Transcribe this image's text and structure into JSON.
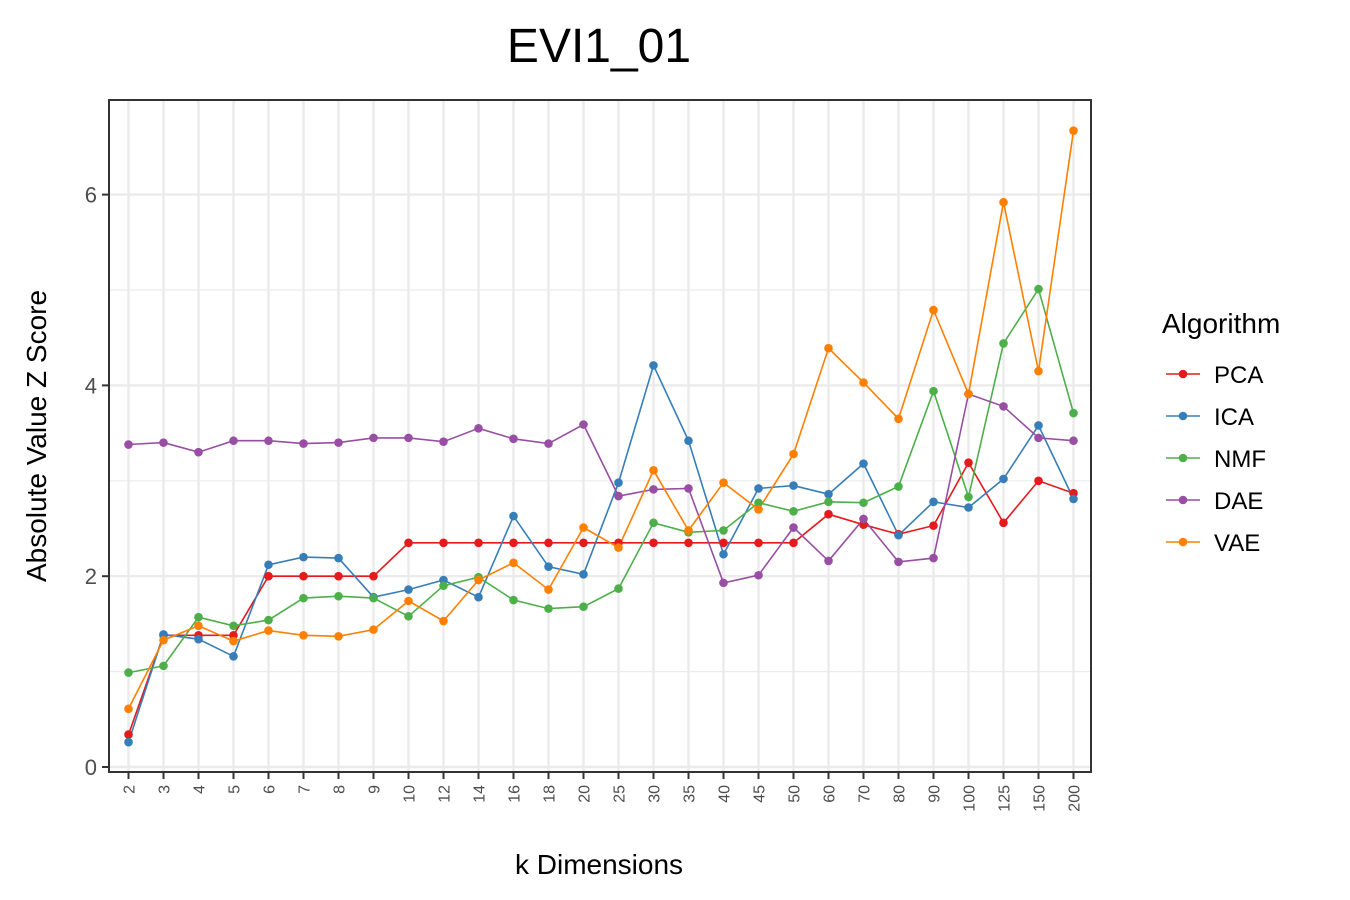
{
  "chart_data": {
    "type": "line",
    "title": "EVI1_01",
    "xlabel": "k Dimensions",
    "ylabel": "Absolute Value Z Score",
    "categories": [
      "2",
      "3",
      "4",
      "5",
      "6",
      "7",
      "8",
      "9",
      "10",
      "12",
      "14",
      "16",
      "18",
      "20",
      "25",
      "30",
      "35",
      "40",
      "45",
      "50",
      "60",
      "70",
      "80",
      "90",
      "100",
      "125",
      "150",
      "200"
    ],
    "ylim": [
      0,
      7
    ],
    "yticks": [
      0,
      2,
      4,
      6
    ],
    "grid": true,
    "legend": {
      "title": "Algorithm",
      "position": "right"
    },
    "series": [
      {
        "name": "PCA",
        "color": "#e41a1c",
        "values": [
          0.34,
          1.38,
          1.38,
          1.38,
          2.0,
          2.0,
          2.0,
          2.0,
          2.35,
          2.35,
          2.35,
          2.35,
          2.35,
          2.35,
          2.35,
          2.35,
          2.35,
          2.35,
          2.35,
          2.35,
          2.65,
          2.54,
          2.44,
          2.53,
          3.19,
          2.56,
          3.0,
          2.87
        ]
      },
      {
        "name": "ICA",
        "color": "#377eb8",
        "values": [
          0.26,
          1.39,
          1.34,
          1.16,
          2.12,
          2.2,
          2.19,
          1.78,
          1.86,
          1.96,
          1.78,
          2.63,
          2.1,
          2.02,
          2.98,
          4.21,
          3.42,
          2.23,
          2.92,
          2.95,
          2.86,
          3.18,
          2.43,
          2.78,
          2.72,
          3.02,
          3.58,
          2.81
        ]
      },
      {
        "name": "NMF",
        "color": "#4daf4a",
        "values": [
          0.99,
          1.06,
          1.57,
          1.48,
          1.54,
          1.77,
          1.79,
          1.77,
          1.58,
          1.9,
          1.99,
          1.75,
          1.66,
          1.68,
          1.87,
          2.56,
          2.46,
          2.48,
          2.77,
          2.68,
          2.78,
          2.77,
          2.94,
          3.94,
          2.83,
          4.44,
          5.01,
          3.71
        ]
      },
      {
        "name": "DAE",
        "color": "#984ea3",
        "values": [
          3.38,
          3.4,
          3.3,
          3.42,
          3.42,
          3.39,
          3.4,
          3.45,
          3.45,
          3.41,
          3.55,
          3.44,
          3.39,
          3.59,
          2.84,
          2.91,
          2.92,
          1.93,
          2.01,
          2.51,
          2.16,
          2.6,
          2.15,
          2.19,
          3.91,
          3.78,
          3.45,
          3.42
        ]
      },
      {
        "name": "VAE",
        "color": "#ff7f00",
        "values": [
          0.61,
          1.33,
          1.48,
          1.32,
          1.43,
          1.38,
          1.37,
          1.44,
          1.74,
          1.53,
          1.96,
          2.14,
          1.86,
          2.51,
          2.3,
          3.11,
          2.48,
          2.98,
          2.7,
          3.28,
          4.39,
          4.03,
          3.65,
          4.79,
          3.91,
          5.92,
          4.15,
          6.67
        ]
      }
    ]
  }
}
